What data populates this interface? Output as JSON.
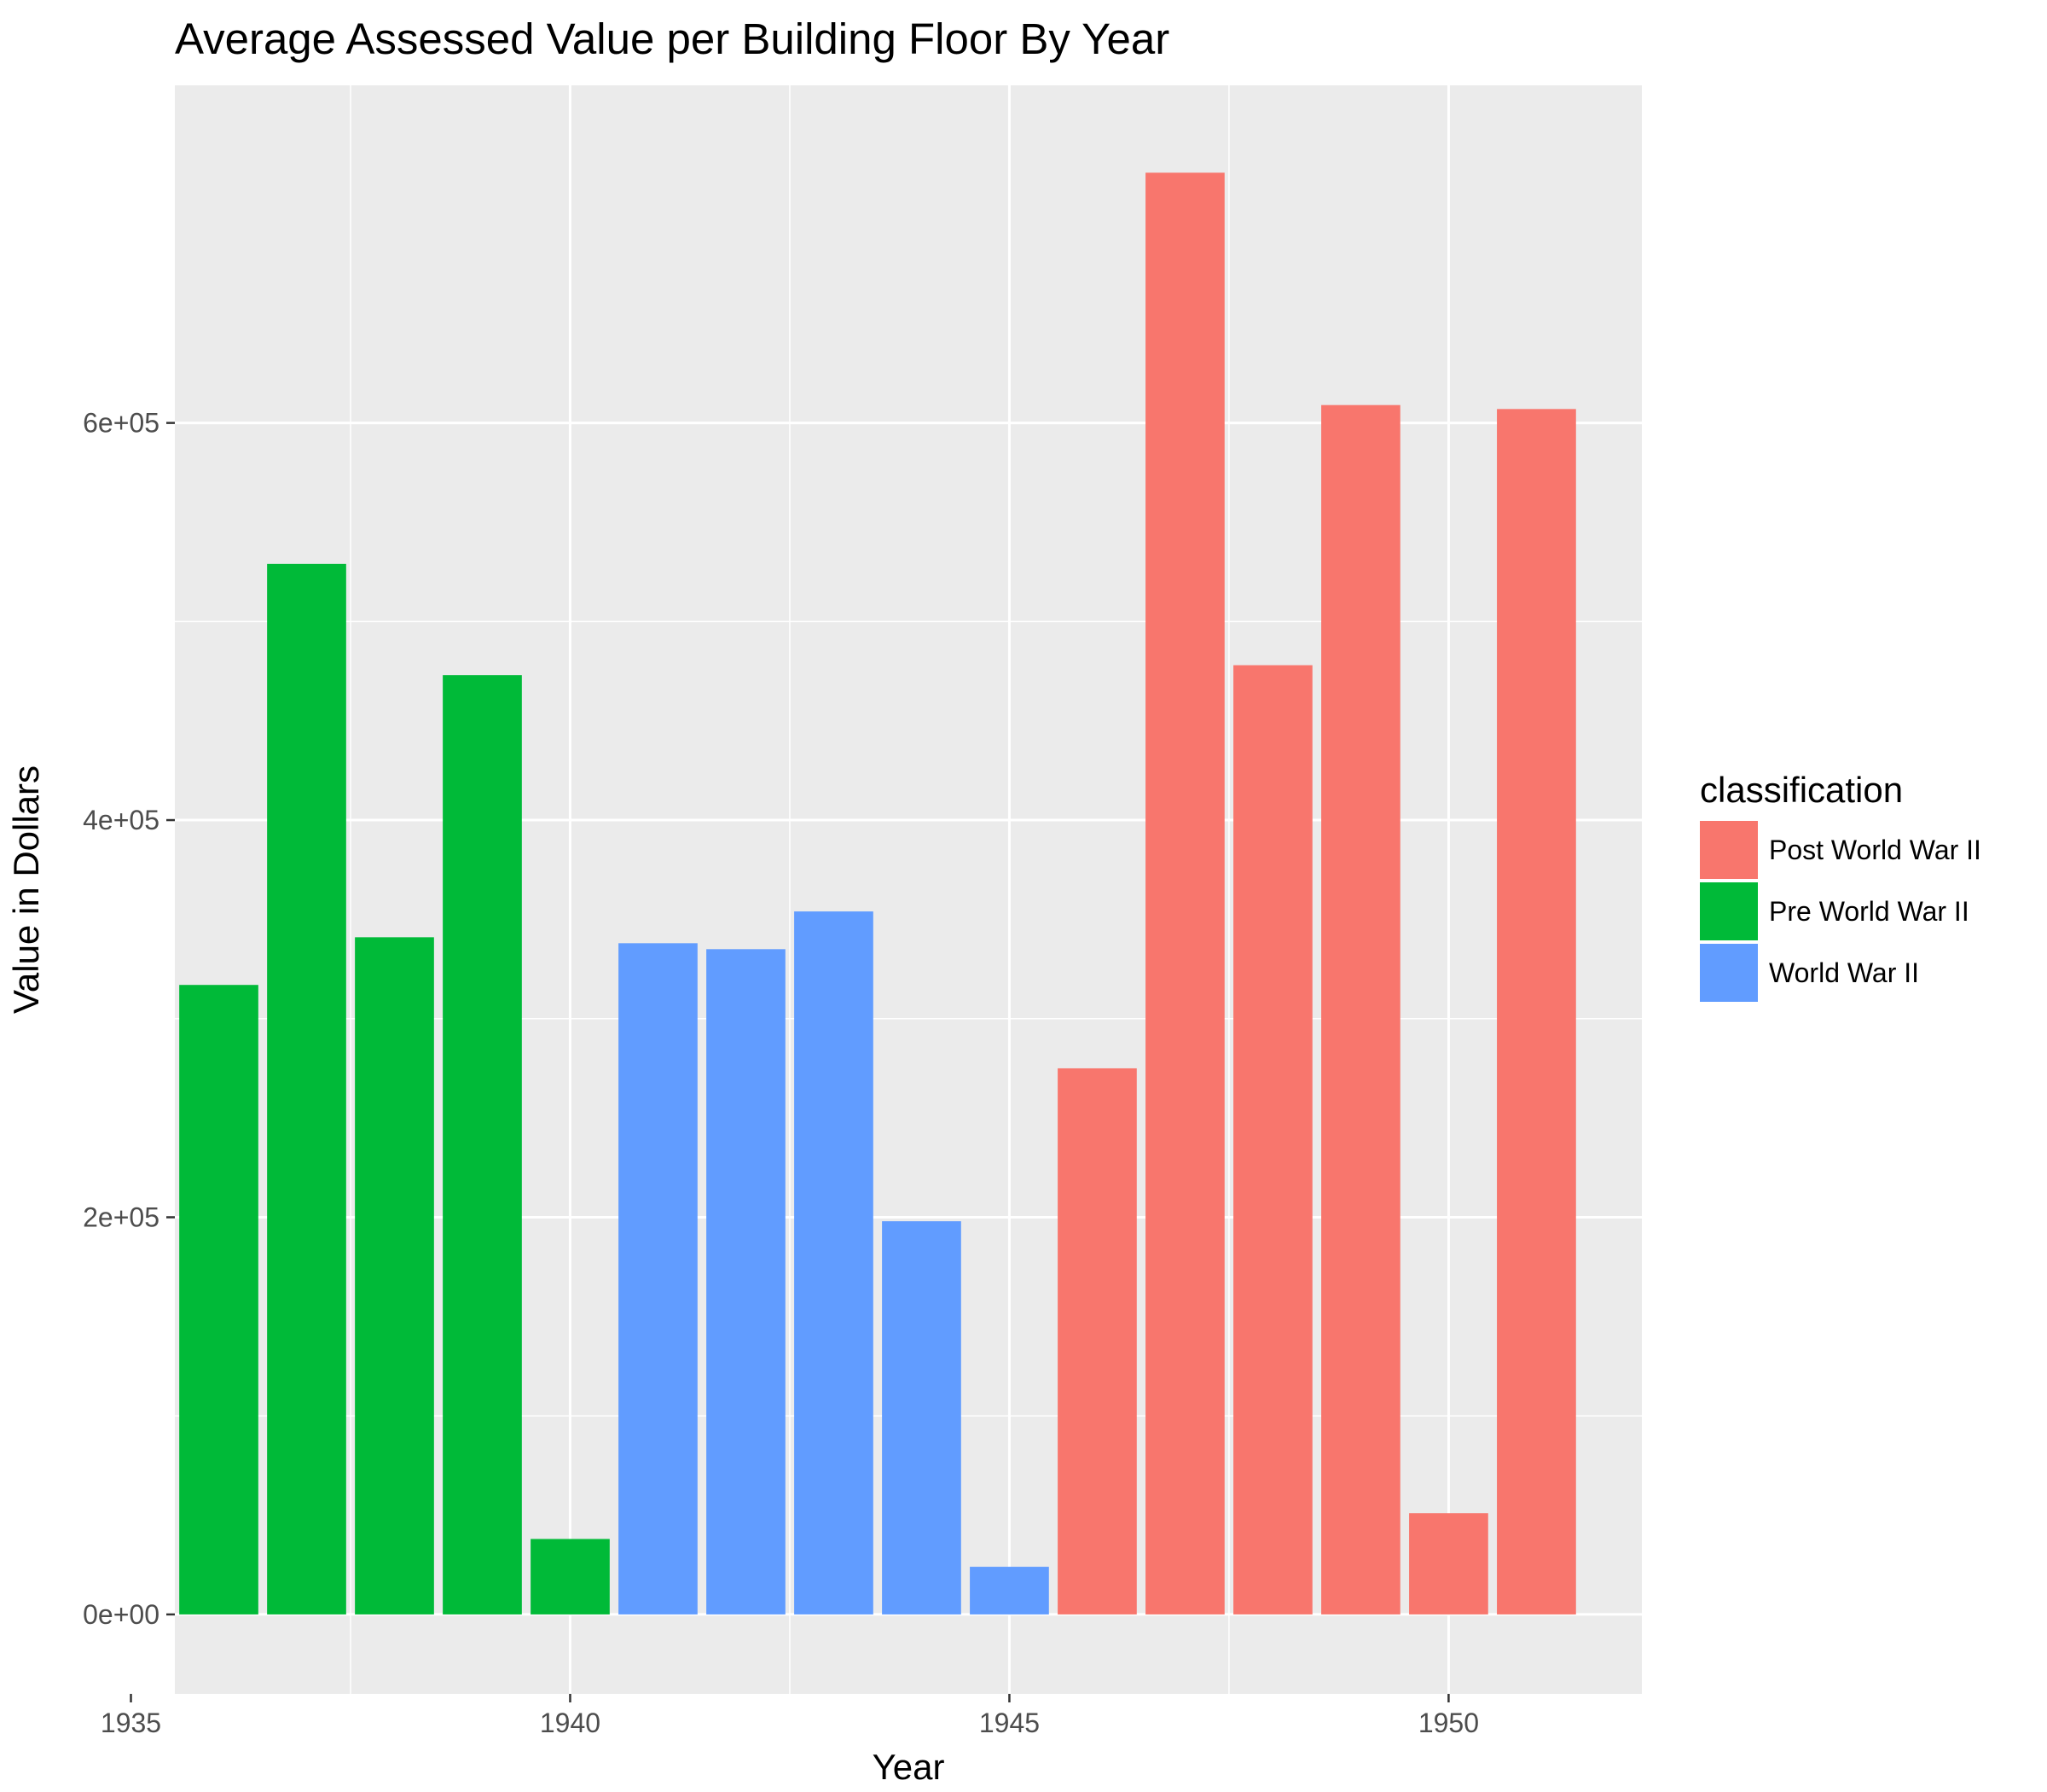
{
  "chart_data": {
    "type": "bar",
    "title": "Average Assessed Value per Building Floor By Year",
    "xlabel": "Year",
    "ylabel": "Value in Dollars",
    "xlim": [
      1935.5,
      1952.2
    ],
    "ylim": [
      -40000,
      770000
    ],
    "x_ticks": [
      1935,
      1940,
      1945,
      1950
    ],
    "x_tick_labels": [
      "1935",
      "1940",
      "1945",
      "1950"
    ],
    "y_ticks": [
      0,
      200000,
      400000,
      600000
    ],
    "y_tick_labels": [
      "0e+00",
      "2e+05",
      "4e+05",
      "6e+05"
    ],
    "grid": true,
    "legend": {
      "title": "classification",
      "position": "right",
      "items": [
        {
          "label": "Post World War II",
          "color": "#F8766D"
        },
        {
          "label": "Pre World War II",
          "color": "#00BA38"
        },
        {
          "label": "World War II",
          "color": "#619CFF"
        }
      ]
    },
    "bars": [
      {
        "year": 1936,
        "value": 317000,
        "classification": "Pre World War II"
      },
      {
        "year": 1937,
        "value": 529000,
        "classification": "Pre World War II"
      },
      {
        "year": 1938,
        "value": 341000,
        "classification": "Pre World War II"
      },
      {
        "year": 1939,
        "value": 473000,
        "classification": "Pre World War II"
      },
      {
        "year": 1940,
        "value": 38000,
        "classification": "Pre World War II"
      },
      {
        "year": 1941,
        "value": 338000,
        "classification": "World War II"
      },
      {
        "year": 1942,
        "value": 335000,
        "classification": "World War II"
      },
      {
        "year": 1943,
        "value": 354000,
        "classification": "World War II"
      },
      {
        "year": 1944,
        "value": 198000,
        "classification": "World War II"
      },
      {
        "year": 1945,
        "value": 24000,
        "classification": "World War II"
      },
      {
        "year": 1946,
        "value": 275000,
        "classification": "Post World War II"
      },
      {
        "year": 1947,
        "value": 726000,
        "classification": "Post World War II"
      },
      {
        "year": 1948,
        "value": 478000,
        "classification": "Post World War II"
      },
      {
        "year": 1949,
        "value": 609000,
        "classification": "Post World War II"
      },
      {
        "year": 1950,
        "value": 51000,
        "classification": "Post World War II"
      },
      {
        "year": 1951,
        "value": 607000,
        "classification": "Post World War II"
      }
    ]
  }
}
